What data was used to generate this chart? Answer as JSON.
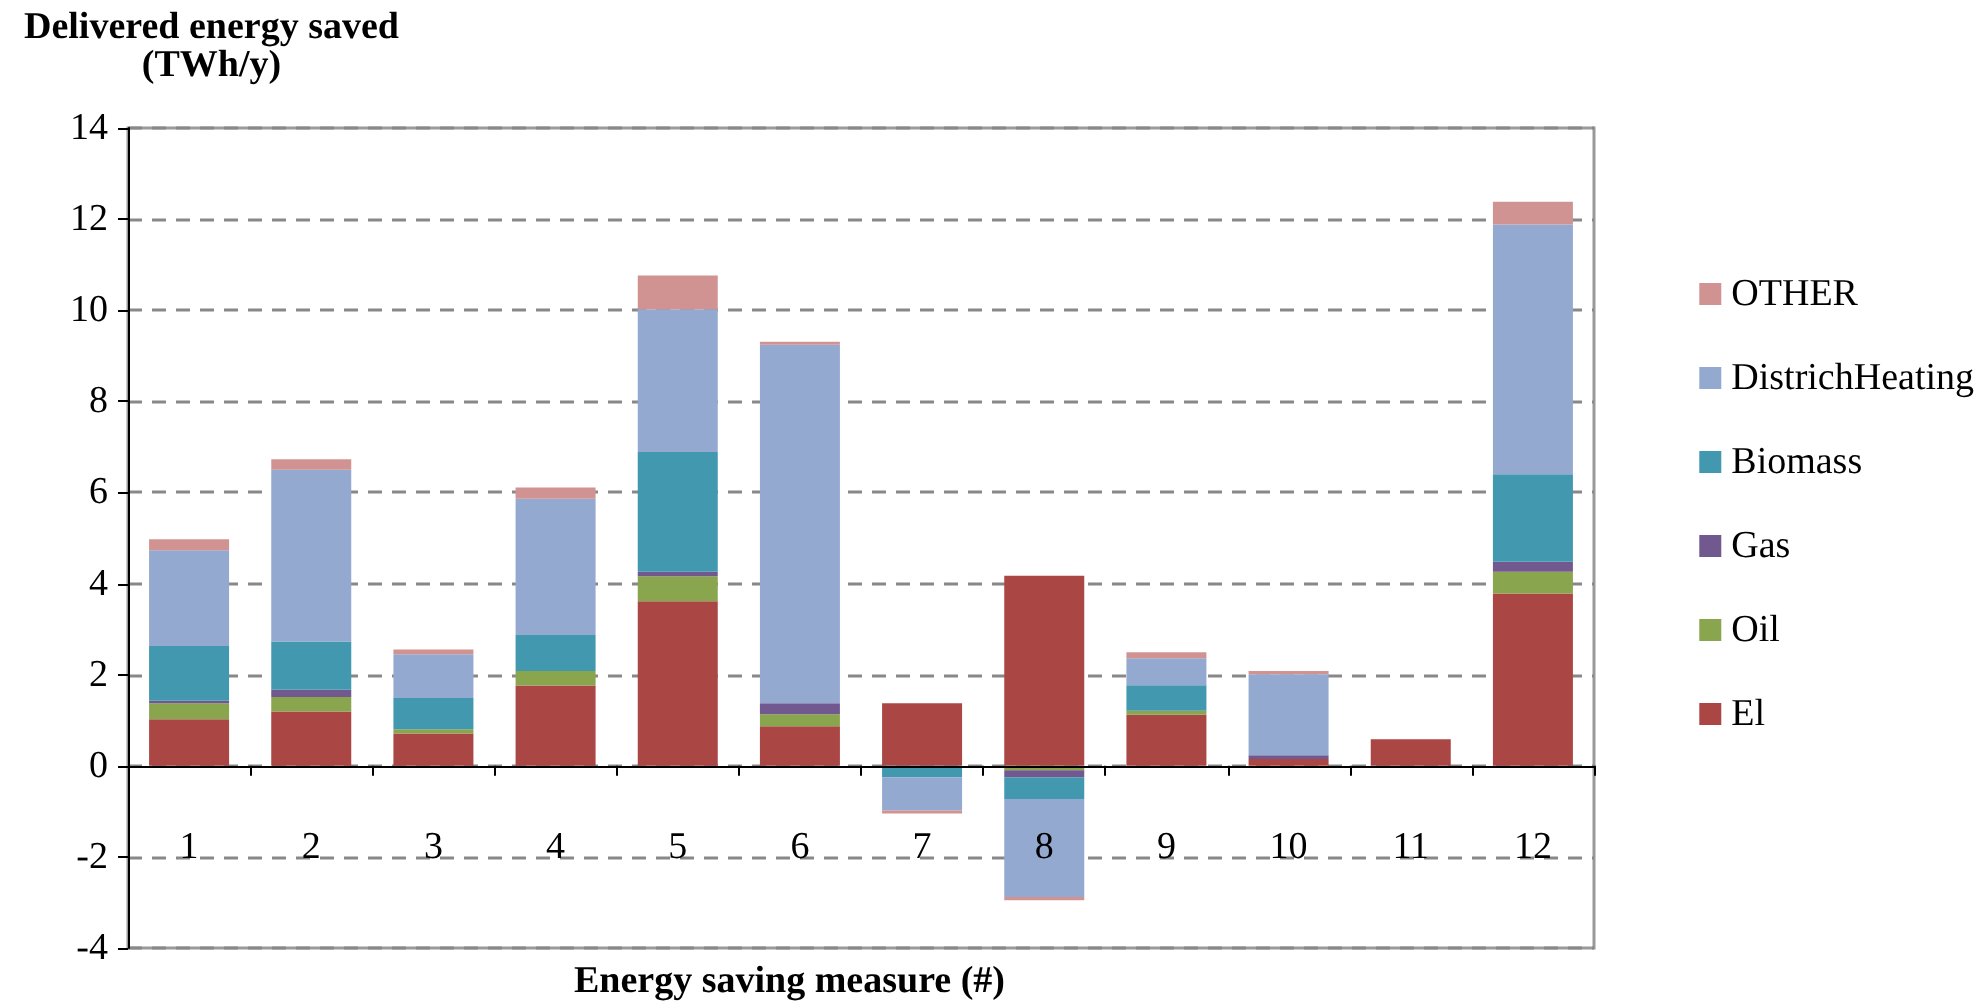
{
  "chart_data": {
    "type": "bar",
    "stacked": true,
    "ylabel": "Delivered energy saved\n(TWh/y)",
    "xlabel": "Energy saving measure (#)",
    "categories": [
      "1",
      "2",
      "3",
      "4",
      "5",
      "6",
      "7",
      "8",
      "9",
      "10",
      "11",
      "12"
    ],
    "series": [
      {
        "name": "El",
        "color": "#aa4643",
        "values": [
          1.02,
          1.19,
          0.71,
          1.76,
          3.61,
          0.87,
          1.37,
          4.17,
          1.12,
          0.15,
          0.58,
          3.78
        ]
      },
      {
        "name": "Oil",
        "color": "#89a54e",
        "values": [
          0.35,
          0.32,
          0.09,
          0.32,
          0.55,
          0.26,
          0,
          -0.1,
          0.09,
          0,
          0,
          0.48
        ]
      },
      {
        "name": "Gas",
        "color": "#71588f",
        "values": [
          0.06,
          0.16,
          0,
          0,
          0.1,
          0.24,
          0,
          -0.15,
          0,
          0.08,
          0,
          0.22
        ]
      },
      {
        "name": "Biomass",
        "color": "#4198af",
        "values": [
          1.2,
          1.06,
          0.69,
          0.79,
          2.63,
          0,
          -0.25,
          -0.48,
          0.56,
          0,
          0,
          1.92
        ]
      },
      {
        "name": "DistrichHeating",
        "color": "#93a9cf",
        "values": [
          2.1,
          3.77,
          0.96,
          2.99,
          3.13,
          7.87,
          -0.73,
          -2.15,
          0.59,
          1.78,
          0,
          5.48
        ]
      },
      {
        "name": "OTHER",
        "color": "#d19392",
        "values": [
          0.24,
          0.23,
          0.1,
          0.25,
          0.74,
          0.07,
          -0.07,
          -0.07,
          0.13,
          0.07,
          0,
          0.5
        ]
      }
    ],
    "ylim": [
      -4,
      14
    ],
    "yticks": [
      -4,
      -2,
      0,
      2,
      4,
      6,
      8,
      10,
      12,
      14
    ],
    "grid": "y",
    "legend": "right"
  }
}
